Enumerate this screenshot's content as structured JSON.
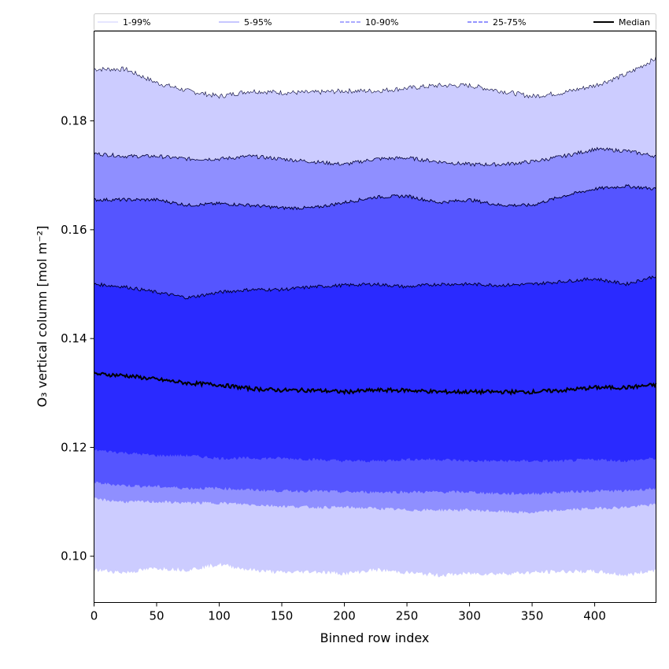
{
  "chart_data": {
    "type": "area",
    "title": "",
    "xlabel": "Binned row index",
    "ylabel": "O₃ vertical column [mol m⁻²]",
    "xlim": [
      0,
      449
    ],
    "ylim": [
      0.0915,
      0.1965
    ],
    "xticks": [
      0,
      50,
      100,
      150,
      200,
      250,
      300,
      350,
      400
    ],
    "yticks": [
      0.1,
      0.12,
      0.14,
      0.16,
      0.18
    ],
    "ytick_labels": [
      "0.10",
      "0.12",
      "0.14",
      "0.16",
      "0.18"
    ],
    "legend_position": "top",
    "legend": [
      {
        "label": "1-99%",
        "color": "#ccccff",
        "style": "solid"
      },
      {
        "label": "5-95%",
        "color": "#8f8fff",
        "style": "solid"
      },
      {
        "label": "10-90%",
        "color": "#5555ff",
        "style": "dashed"
      },
      {
        "label": "25-75%",
        "color": "#2a2aff",
        "style": "dashed"
      },
      {
        "label": "Median",
        "color": "#000000",
        "style": "solid"
      }
    ],
    "x": [
      0,
      25,
      50,
      75,
      100,
      125,
      150,
      175,
      200,
      225,
      250,
      275,
      300,
      325,
      350,
      375,
      400,
      425,
      449
    ],
    "series": [
      {
        "name": "p99",
        "values": [
          0.1895,
          0.1895,
          0.187,
          0.1855,
          0.1845,
          0.1855,
          0.1852,
          0.1852,
          0.1855,
          0.1855,
          0.186,
          0.1865,
          0.1865,
          0.1855,
          0.1845,
          0.1852,
          0.1865,
          0.1885,
          0.1915
        ]
      },
      {
        "name": "p95",
        "values": [
          0.174,
          0.1735,
          0.1735,
          0.173,
          0.173,
          0.1735,
          0.173,
          0.1725,
          0.172,
          0.173,
          0.1732,
          0.1725,
          0.172,
          0.172,
          0.1725,
          0.1735,
          0.1748,
          0.1745,
          0.1735
        ]
      },
      {
        "name": "p90",
        "values": [
          0.1655,
          0.1655,
          0.1655,
          0.1645,
          0.1648,
          0.1645,
          0.164,
          0.164,
          0.165,
          0.166,
          0.1662,
          0.165,
          0.1655,
          0.1645,
          0.1645,
          0.1662,
          0.1675,
          0.168,
          0.1675
        ]
      },
      {
        "name": "p75",
        "values": [
          0.15,
          0.1495,
          0.1485,
          0.1475,
          0.1485,
          0.149,
          0.149,
          0.1495,
          0.1498,
          0.15,
          0.1495,
          0.15,
          0.15,
          0.1498,
          0.15,
          0.1505,
          0.151,
          0.15,
          0.1515
        ]
      },
      {
        "name": "median",
        "values": [
          0.1335,
          0.1332,
          0.1325,
          0.1318,
          0.1315,
          0.1308,
          0.1305,
          0.1305,
          0.1302,
          0.1305,
          0.1305,
          0.1302,
          0.1302,
          0.1302,
          0.1302,
          0.1305,
          0.131,
          0.131,
          0.1315
        ]
      },
      {
        "name": "p25",
        "values": [
          0.1195,
          0.119,
          0.1185,
          0.1185,
          0.118,
          0.118,
          0.118,
          0.1178,
          0.1175,
          0.1175,
          0.1178,
          0.1178,
          0.1175,
          0.1175,
          0.1175,
          0.1175,
          0.1178,
          0.1175,
          0.118
        ]
      },
      {
        "name": "p10",
        "values": [
          0.1135,
          0.113,
          0.1128,
          0.1125,
          0.1125,
          0.1122,
          0.112,
          0.112,
          0.1118,
          0.1118,
          0.1118,
          0.1118,
          0.1118,
          0.1115,
          0.1115,
          0.1118,
          0.112,
          0.112,
          0.1125
        ]
      },
      {
        "name": "p5",
        "values": [
          0.1105,
          0.11,
          0.11,
          0.1098,
          0.1098,
          0.1095,
          0.1092,
          0.109,
          0.109,
          0.1088,
          0.1085,
          0.1085,
          0.1085,
          0.1082,
          0.108,
          0.1085,
          0.1088,
          0.109,
          0.1095
        ]
      },
      {
        "name": "p1",
        "values": [
          0.0975,
          0.097,
          0.0978,
          0.0975,
          0.0985,
          0.0975,
          0.097,
          0.0972,
          0.0968,
          0.0975,
          0.097,
          0.0965,
          0.0968,
          0.0968,
          0.097,
          0.0972,
          0.0972,
          0.0965,
          0.0975
        ]
      }
    ]
  }
}
